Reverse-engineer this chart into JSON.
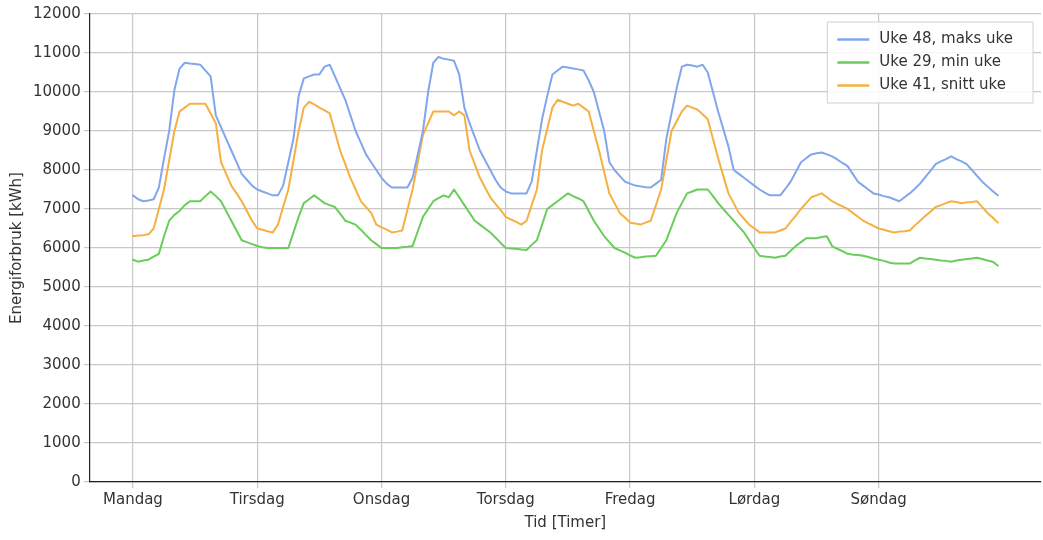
{
  "chart_data": {
    "type": "line",
    "xlabel": "Tid [Timer]",
    "ylabel": "Energiforbruk [kWh]",
    "categories": [
      "Mandag",
      null,
      null,
      null,
      null,
      null,
      null,
      null,
      null,
      null,
      null,
      null,
      null,
      null,
      null,
      null,
      null,
      null,
      null,
      null,
      null,
      null,
      null,
      null,
      "Tirsdag",
      null,
      null,
      null,
      null,
      null,
      null,
      null,
      null,
      null,
      null,
      null,
      null,
      null,
      null,
      null,
      null,
      null,
      null,
      null,
      null,
      null,
      null,
      null,
      "Onsdag",
      null,
      null,
      null,
      null,
      null,
      null,
      null,
      null,
      null,
      null,
      null,
      null,
      null,
      null,
      null,
      null,
      null,
      null,
      null,
      null,
      null,
      null,
      null,
      "Torsdag",
      null,
      null,
      null,
      null,
      null,
      null,
      null,
      null,
      null,
      null,
      null,
      null,
      null,
      null,
      null,
      null,
      null,
      null,
      null,
      null,
      null,
      null,
      null,
      "Fredag",
      null,
      null,
      null,
      null,
      null,
      null,
      null,
      null,
      null,
      null,
      null,
      null,
      null,
      null,
      null,
      null,
      null,
      null,
      null,
      null,
      null,
      null,
      null,
      "Lørdag",
      null,
      null,
      null,
      null,
      null,
      null,
      null,
      null,
      null,
      null,
      null,
      null,
      null,
      null,
      null,
      null,
      null,
      null,
      null,
      null,
      null,
      null,
      null,
      "Søndag",
      null,
      null,
      null,
      null,
      null,
      null,
      null,
      null,
      null,
      null,
      null,
      null,
      null,
      null,
      null,
      null,
      null,
      null,
      null,
      null,
      null,
      null,
      null
    ],
    "ylim": [
      0,
      12000
    ],
    "yticks": [
      0,
      1000,
      2000,
      3000,
      4000,
      5000,
      6000,
      7000,
      8000,
      9000,
      10000,
      11000,
      12000
    ],
    "grid": true,
    "legend": "top right",
    "marker": "none",
    "line_style": "solid",
    "series": [
      {
        "name": "Uke 48, maks uke",
        "color": "#82a6ec",
        "values": [
          7350,
          7250,
          7200,
          7220,
          7250,
          7550,
          8300,
          9000,
          10050,
          10600,
          10750,
          10730,
          10720,
          10700,
          10550,
          10400,
          9400,
          9100,
          8800,
          8500,
          8200,
          7900,
          7750,
          7600,
          7500,
          7450,
          7400,
          7350,
          7350,
          7600,
          8200,
          8800,
          9900,
          10350,
          10400,
          10450,
          10450,
          10650,
          10700,
          10400,
          10100,
          9800,
          9400,
          9000,
          8700,
          8400,
          8200,
          8000,
          7800,
          7650,
          7550,
          7550,
          7550,
          7550,
          7800,
          8400,
          9000,
          10000,
          10750,
          10900,
          10850,
          10830,
          10800,
          10450,
          9600,
          9200,
          8850,
          8500,
          8250,
          8000,
          7750,
          7550,
          7450,
          7400,
          7400,
          7400,
          7400,
          7700,
          8500,
          9300,
          9900,
          10450,
          10550,
          10650,
          10630,
          10600,
          10580,
          10550,
          10300,
          10000,
          9500,
          9000,
          8200,
          8000,
          7850,
          7700,
          7650,
          7600,
          7580,
          7560,
          7550,
          7650,
          7750,
          8800,
          9450,
          10100,
          10650,
          10700,
          10680,
          10650,
          10700,
          10500,
          10000,
          9500,
          9050,
          8600,
          8000,
          7900,
          7800,
          7700,
          7600,
          7500,
          7420,
          7350,
          7350,
          7350,
          7520,
          7700,
          7950,
          8200,
          8300,
          8400,
          8430,
          8450,
          8400,
          8350,
          8270,
          8180,
          8100,
          7900,
          7700,
          7600,
          7500,
          7400,
          7370,
          7330,
          7300,
          7250,
          7200,
          7300,
          7400,
          7520,
          7650,
          7820,
          7980,
          8150,
          8220,
          8280,
          8350,
          8280,
          8220,
          8150,
          8000,
          7850,
          7700,
          7580,
          7460,
          7350
        ]
      },
      {
        "name": "Uke 29, min uke",
        "color": "#6acd5b",
        "values": [
          5700,
          5650,
          5680,
          5700,
          5780,
          5850,
          6300,
          6700,
          6850,
          6950,
          7100,
          7200,
          7200,
          7200,
          7330,
          7450,
          7330,
          7200,
          6950,
          6700,
          6450,
          6200,
          6150,
          6100,
          6050,
          6020,
          6000,
          6000,
          6000,
          6000,
          6000,
          6400,
          6800,
          7150,
          7250,
          7350,
          7250,
          7150,
          7100,
          7050,
          6880,
          6700,
          6650,
          6600,
          6470,
          6330,
          6200,
          6100,
          6000,
          6000,
          6000,
          6000,
          6020,
          6030,
          6050,
          6430,
          6800,
          7000,
          7200,
          7280,
          7350,
          7300,
          7500,
          7300,
          7100,
          6900,
          6700,
          6600,
          6500,
          6400,
          6270,
          6130,
          6000,
          5990,
          5980,
          5960,
          5950,
          6080,
          6200,
          6600,
          7000,
          7100,
          7200,
          7300,
          7400,
          7330,
          7270,
          7200,
          6950,
          6700,
          6500,
          6300,
          6150,
          6000,
          5940,
          5880,
          5810,
          5750,
          5760,
          5780,
          5790,
          5800,
          6000,
          6200,
          6550,
          6900,
          7150,
          7400,
          7450,
          7500,
          7500,
          7500,
          7330,
          7150,
          7000,
          6850,
          6700,
          6550,
          6400,
          6200,
          6000,
          5800,
          5780,
          5770,
          5750,
          5780,
          5800,
          5930,
          6050,
          6150,
          6250,
          6250,
          6250,
          6280,
          6300,
          6050,
          5980,
          5920,
          5850,
          5830,
          5820,
          5800,
          5770,
          5730,
          5700,
          5670,
          5630,
          5600,
          5600,
          5600,
          5600,
          5680,
          5750,
          5730,
          5720,
          5700,
          5680,
          5670,
          5650,
          5680,
          5700,
          5720,
          5730,
          5750,
          5720,
          5680,
          5650,
          5550
        ]
      },
      {
        "name": "Uke 41, snitt uke",
        "color": "#f5b041",
        "values": [
          6300,
          6320,
          6330,
          6350,
          6500,
          7000,
          7500,
          8250,
          9000,
          9500,
          9600,
          9700,
          9700,
          9700,
          9700,
          9450,
          9200,
          8200,
          7900,
          7600,
          7400,
          7200,
          6950,
          6700,
          6500,
          6470,
          6430,
          6400,
          6600,
          7050,
          7500,
          8250,
          9000,
          9600,
          9750,
          9680,
          9600,
          9530,
          9450,
          8980,
          8500,
          8150,
          7800,
          7500,
          7200,
          7050,
          6900,
          6600,
          6530,
          6470,
          6400,
          6420,
          6450,
          6980,
          7500,
          8200,
          8900,
          9200,
          9500,
          9500,
          9500,
          9500,
          9400,
          9500,
          9400,
          8500,
          8150,
          7800,
          7550,
          7300,
          7130,
          6970,
          6800,
          6730,
          6670,
          6600,
          6700,
          7100,
          7500,
          8500,
          9050,
          9600,
          9800,
          9750,
          9700,
          9650,
          9700,
          9600,
          9500,
          9000,
          8500,
          7950,
          7400,
          7150,
          6900,
          6780,
          6650,
          6630,
          6600,
          6650,
          6700,
          7100,
          7500,
          8250,
          9000,
          9250,
          9500,
          9650,
          9600,
          9550,
          9430,
          9300,
          8800,
          8300,
          7850,
          7400,
          7150,
          6900,
          6750,
          6600,
          6500,
          6400,
          6400,
          6400,
          6400,
          6450,
          6500,
          6670,
          6830,
          7000,
          7150,
          7300,
          7350,
          7400,
          7300,
          7200,
          7130,
          7070,
          7000,
          6900,
          6800,
          6700,
          6630,
          6570,
          6500,
          6470,
          6430,
          6400,
          6420,
          6430,
          6450,
          6580,
          6700,
          6820,
          6930,
          7050,
          7100,
          7150,
          7200,
          7180,
          7150,
          7170,
          7180,
          7200,
          7050,
          6900,
          6780,
          6650
        ]
      }
    ]
  }
}
